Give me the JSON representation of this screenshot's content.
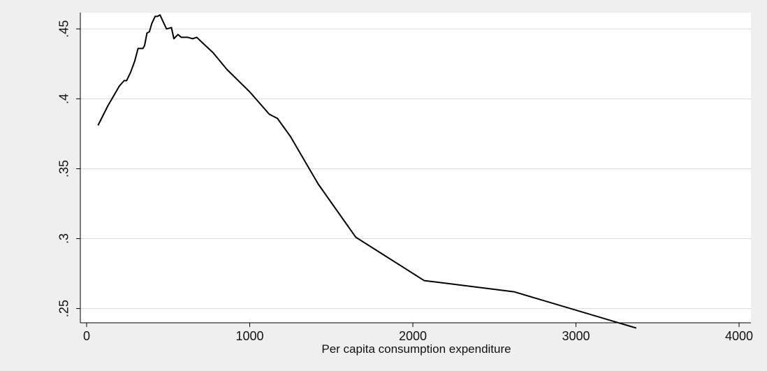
{
  "chart_data": {
    "type": "line",
    "title": "",
    "xlabel": "Per capita consumption expenditure",
    "ylabel": "",
    "xlim": [
      0,
      4000
    ],
    "ylim": [
      0.2398,
      0.4617
    ],
    "xticks": [
      0,
      1000,
      2000,
      3000,
      4000
    ],
    "xtick_labels": [
      "0",
      "1000",
      "2000",
      "3000",
      "4000"
    ],
    "yticks": [
      0.25,
      0.3,
      0.35,
      0.4,
      0.45
    ],
    "ytick_labels": [
      ".25",
      ".3",
      ".35",
      ".4",
      ".45"
    ],
    "grid": "horizontal",
    "legend": "none",
    "colors": {
      "line": "#000000",
      "background": "#efefef",
      "plot_area": "#ffffff",
      "grid": "#dcdcdc"
    },
    "series": [
      {
        "values_note": "",
        "points": [
          [
            70,
            0.381
          ],
          [
            130,
            0.395
          ],
          [
            200,
            0.409
          ],
          [
            230,
            0.413
          ],
          [
            245,
            0.413
          ],
          [
            270,
            0.419
          ],
          [
            295,
            0.427
          ],
          [
            315,
            0.436
          ],
          [
            345,
            0.436
          ],
          [
            355,
            0.438
          ],
          [
            370,
            0.447
          ],
          [
            385,
            0.448
          ],
          [
            400,
            0.454
          ],
          [
            420,
            0.459
          ],
          [
            435,
            0.459
          ],
          [
            450,
            0.46
          ],
          [
            470,
            0.455
          ],
          [
            490,
            0.45
          ],
          [
            520,
            0.451
          ],
          [
            535,
            0.443
          ],
          [
            560,
            0.446
          ],
          [
            580,
            0.444
          ],
          [
            620,
            0.444
          ],
          [
            650,
            0.443
          ],
          [
            675,
            0.444
          ],
          [
            720,
            0.439
          ],
          [
            775,
            0.433
          ],
          [
            860,
            0.421
          ],
          [
            1000,
            0.405
          ],
          [
            1120,
            0.389
          ],
          [
            1170,
            0.386
          ],
          [
            1250,
            0.373
          ],
          [
            1320,
            0.359
          ],
          [
            1420,
            0.339
          ],
          [
            1650,
            0.301
          ],
          [
            2070,
            0.27
          ],
          [
            2620,
            0.262
          ],
          [
            3370,
            0.236
          ]
        ]
      }
    ]
  }
}
